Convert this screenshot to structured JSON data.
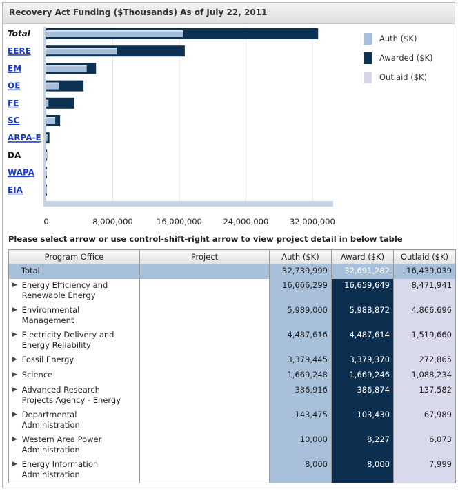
{
  "title": "Recovery Act Funding ($Thousands) As of July 22, 2011",
  "instruction": "Please select arrow or use control-shift-right arrow to view project detail in below  table",
  "legend": [
    {
      "label": "Auth ($K)",
      "color": "#a8bfd9"
    },
    {
      "label": "Awarded ($K)",
      "color": "#0d3152"
    },
    {
      "label": "Outlaid ($K)",
      "color": "#d4d5e8"
    }
  ],
  "chart_data": {
    "type": "bar",
    "orientation": "horizontal",
    "categories": [
      "Total",
      "EERE",
      "EM",
      "OE",
      "FE",
      "SC",
      "ARPA-E",
      "DA",
      "WAPA",
      "EIA"
    ],
    "category_links": [
      false,
      true,
      true,
      true,
      true,
      true,
      true,
      false,
      true,
      true
    ],
    "series": [
      {
        "name": "Auth ($K)",
        "color": "#a8bfd9",
        "values": [
          32739999,
          16666299,
          5989000,
          4487616,
          3379445,
          1669248,
          386916,
          143475,
          10000,
          8000
        ]
      },
      {
        "name": "Awarded ($K)",
        "color": "#0d3152",
        "values": [
          32691282,
          16659649,
          5988872,
          4487614,
          3379370,
          1669246,
          386874,
          103430,
          8227,
          8000
        ]
      },
      {
        "name": "Outlaid ($K)",
        "color": "#d4d5e8",
        "values": [
          16439039,
          8471941,
          4866696,
          1519660,
          272865,
          1088234,
          137582,
          67989,
          6073,
          7999
        ]
      }
    ],
    "xlim": [
      0,
      34000000
    ],
    "xticks": [
      0,
      8000000,
      16000000,
      24000000,
      32000000
    ],
    "xtick_labels": [
      "0",
      "8,000,000",
      "16,000,000",
      "24,000,000",
      "32,000,000"
    ],
    "grid": true,
    "legend_position": "right"
  },
  "table": {
    "headers": [
      "Program Office",
      "Project",
      "Auth ($K)",
      "Award ($K)",
      "Outlaid ($K)"
    ],
    "total": {
      "office": "Total",
      "project": "",
      "auth": "32,739,999",
      "award": "32,691,282",
      "outlaid": "16,439,039"
    },
    "rows": [
      {
        "arrow": "▶",
        "office": "Energy Efficiency and Renewable Energy",
        "project": "",
        "auth": "16,666,299",
        "award": "16,659,649",
        "outlaid": "8,471,941"
      },
      {
        "arrow": "▶",
        "office": "Environmental Management",
        "project": "",
        "auth": "5,989,000",
        "award": "5,988,872",
        "outlaid": "4,866,696"
      },
      {
        "arrow": "▶",
        "office": "Electricity Delivery and Energy Reliability",
        "project": "",
        "auth": "4,487,616",
        "award": "4,487,614",
        "outlaid": "1,519,660"
      },
      {
        "arrow": "▶",
        "office": "Fossil Energy",
        "project": "",
        "auth": "3,379,445",
        "award": "3,379,370",
        "outlaid": "272,865"
      },
      {
        "arrow": "▶",
        "office": "Science",
        "project": "",
        "auth": "1,669,248",
        "award": "1,669,246",
        "outlaid": "1,088,234"
      },
      {
        "arrow": "▶",
        "office": "Advanced Research Projects Agency - Energy",
        "project": "",
        "auth": "386,916",
        "award": "386,874",
        "outlaid": "137,582"
      },
      {
        "arrow": "▶",
        "office": "Departmental Administration",
        "project": "",
        "auth": "143,475",
        "award": "103,430",
        "outlaid": "67,989"
      },
      {
        "arrow": "▶",
        "office": "Western Area Power Administration",
        "project": "",
        "auth": "10,000",
        "award": "8,227",
        "outlaid": "6,073"
      },
      {
        "arrow": "▶",
        "office": "Energy Information Administration",
        "project": "",
        "auth": "8,000",
        "award": "8,000",
        "outlaid": "7,999"
      }
    ]
  }
}
